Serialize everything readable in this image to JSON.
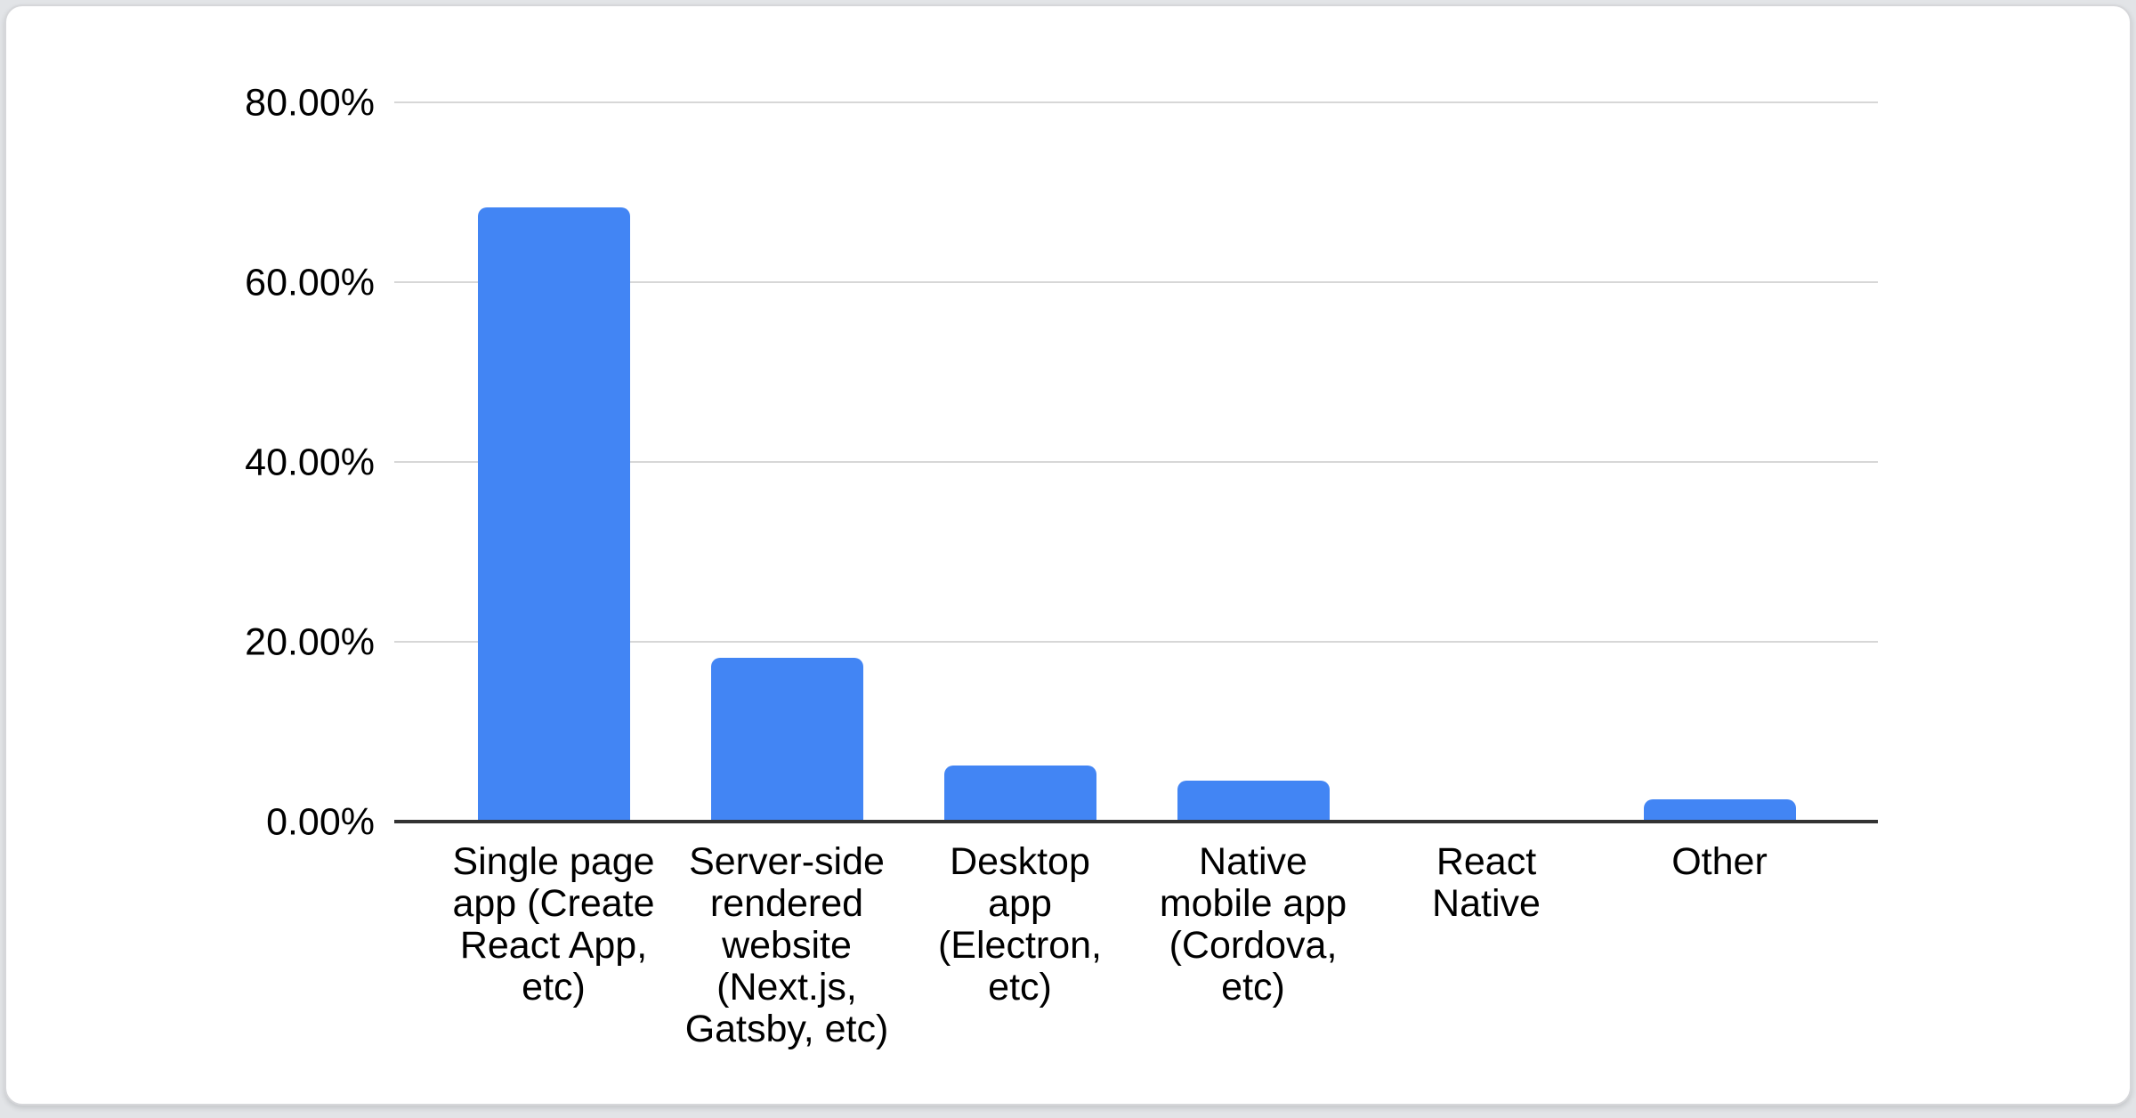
{
  "theme": {
    "page_bg": "#e2e4e7",
    "card_bg": "#ffffff",
    "card_border": "#d6d7da",
    "bar_color": "#4285f4",
    "gridline_color": "#d7d7d7",
    "axis_color": "#333333",
    "text_color": "#000000"
  },
  "chart_data": {
    "type": "bar",
    "title": "",
    "categories": [
      "Single page app (Create React App, etc)",
      "Server-side rendered website (Next.js, Gatsby, etc)",
      "Desktop app (Electron, etc)",
      "Native mobile app (Cordova, etc)",
      "React Native",
      "Other"
    ],
    "values": [
      68.3,
      18.2,
      6.2,
      4.6,
      0,
      2.5
    ],
    "value_unit": "%",
    "xlabel": "",
    "ylabel": "",
    "ylim": [
      0,
      80
    ],
    "ytick_step": 20,
    "ytick_labels": [
      "80.00%",
      "60.00%",
      "40.00%",
      "20.00%",
      "0.00%"
    ],
    "grid": true,
    "legend_position": "none"
  },
  "category_label_lines": [
    [
      "Single page",
      "app (Create",
      "React App,",
      "etc)"
    ],
    [
      "Server-side",
      "rendered",
      "website",
      "(Next.js,",
      "Gatsby, etc)"
    ],
    [
      "Desktop",
      "app",
      "(Electron,",
      "etc)"
    ],
    [
      "Native",
      "mobile app",
      "(Cordova,",
      "etc)"
    ],
    [
      "React",
      "Native"
    ],
    [
      "Other"
    ]
  ]
}
